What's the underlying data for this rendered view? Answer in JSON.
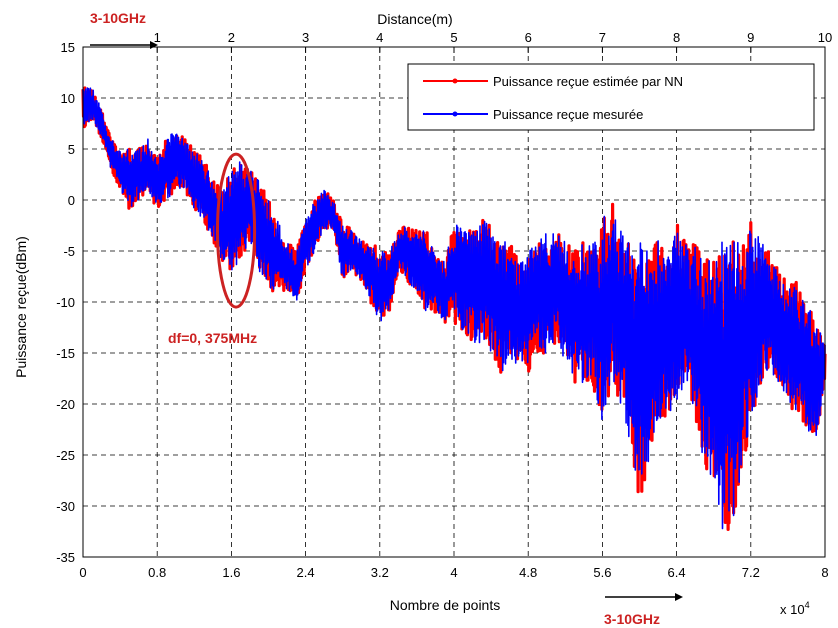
{
  "chart_data": {
    "type": "line",
    "title": "",
    "top_xlabel": "Distance(m)",
    "xlabel": "Nombre de points",
    "ylabel": "Puissance reçue(dBm)",
    "x_multiplier_label": "x 10",
    "x_multiplier_exponent": "4",
    "xlim": [
      0,
      8
    ],
    "ylim": [
      -35,
      15
    ],
    "xticks": [
      "0",
      "0.8",
      "1.6",
      "2.4",
      "3.2",
      "4",
      "4.8",
      "5.6",
      "6.4",
      "7.2",
      "8"
    ],
    "yticks": [
      "15",
      "10",
      "5",
      "0",
      "-5",
      "-10",
      "-15",
      "-20",
      "-25",
      "-30",
      "-35"
    ],
    "top_xticks": [
      "1",
      "2",
      "3",
      "4",
      "5",
      "6",
      "7",
      "8",
      "9",
      "10"
    ],
    "grid": true,
    "legend_position": "top-right",
    "series": [
      {
        "name": "Puissance reçue estimée par NN",
        "color": "#ff0000",
        "envelope_x": [
          0,
          0.1,
          0.2,
          0.3,
          0.4,
          0.5,
          0.6,
          0.7,
          0.8,
          0.9,
          1.0,
          1.1,
          1.2,
          1.3,
          1.4,
          1.5,
          1.6,
          1.7,
          1.8,
          1.9,
          2.0,
          2.1,
          2.2,
          2.3,
          2.4,
          2.5,
          2.6,
          2.7,
          2.8,
          2.9,
          3.0,
          3.1,
          3.2,
          3.3,
          3.4,
          3.5,
          3.6,
          3.7,
          3.8,
          3.9,
          4.0,
          4.1,
          4.2,
          4.3,
          4.4,
          4.5,
          4.6,
          4.7,
          4.8,
          4.9,
          5.0,
          5.1,
          5.2,
          5.3,
          5.4,
          5.5,
          5.6,
          5.7,
          5.8,
          5.9,
          6.0,
          6.1,
          6.2,
          6.3,
          6.4,
          6.5,
          6.6,
          6.7,
          6.8,
          6.9,
          7.0,
          7.1,
          7.2,
          7.3,
          7.4,
          7.5,
          7.6,
          7.7,
          7.8,
          7.9,
          8.0
        ],
        "upper": [
          11,
          11,
          9,
          6,
          5,
          5,
          5,
          6,
          4,
          6,
          7,
          6,
          5,
          4,
          2,
          1,
          3,
          4,
          3,
          2,
          0,
          -2,
          -4,
          -5,
          -2,
          0,
          1,
          0,
          -2,
          -3,
          -4,
          -4,
          -5,
          -5,
          -3,
          -2,
          -3,
          -3,
          -5,
          -6,
          -2,
          -3,
          -3,
          -2,
          -2,
          -4,
          -4,
          -6,
          -5,
          -4,
          -3,
          -3,
          -4,
          -5,
          -4,
          -4,
          -2,
          0,
          -3,
          -4,
          -4,
          -4,
          -4,
          -5,
          -2,
          -4,
          -4,
          -6,
          -5,
          -4,
          -4,
          -4,
          -2,
          -4,
          -5,
          -7,
          -8,
          -8,
          -10,
          -12,
          -14
        ],
        "lower": [
          7,
          8,
          6,
          3,
          1,
          -1,
          0,
          1,
          -1,
          0,
          1,
          1,
          -1,
          -2,
          -4,
          -6,
          -7,
          -6,
          -4,
          -7,
          -9,
          -9,
          -9,
          -10,
          -7,
          -5,
          -3,
          -3,
          -8,
          -7,
          -8,
          -10,
          -12,
          -11,
          -7,
          -8,
          -9,
          -11,
          -11,
          -12,
          -12,
          -13,
          -14,
          -14,
          -15,
          -17,
          -16,
          -16,
          -17,
          -15,
          -15,
          -14,
          -16,
          -18,
          -18,
          -18,
          -23,
          -18,
          -20,
          -24,
          -30,
          -26,
          -22,
          -21,
          -20,
          -18,
          -21,
          -26,
          -28,
          -33,
          -33,
          -27,
          -22,
          -18,
          -17,
          -18,
          -20,
          -21,
          -23,
          -24,
          -18
        ]
      },
      {
        "name": "Puissance reçue mesurée",
        "color": "#0000ff",
        "envelope_x": [
          0,
          0.1,
          0.2,
          0.3,
          0.4,
          0.5,
          0.6,
          0.7,
          0.8,
          0.9,
          1.0,
          1.1,
          1.2,
          1.3,
          1.4,
          1.5,
          1.6,
          1.7,
          1.8,
          1.9,
          2.0,
          2.1,
          2.2,
          2.3,
          2.4,
          2.5,
          2.6,
          2.7,
          2.8,
          2.9,
          3.0,
          3.1,
          3.2,
          3.3,
          3.4,
          3.5,
          3.6,
          3.7,
          3.8,
          3.9,
          4.0,
          4.1,
          4.2,
          4.3,
          4.4,
          4.5,
          4.6,
          4.7,
          4.8,
          4.9,
          5.0,
          5.1,
          5.2,
          5.3,
          5.4,
          5.5,
          5.6,
          5.7,
          5.8,
          5.9,
          6.0,
          6.1,
          6.2,
          6.3,
          6.4,
          6.5,
          6.6,
          6.7,
          6.8,
          6.9,
          7.0,
          7.1,
          7.2,
          7.3,
          7.4,
          7.5,
          7.6,
          7.7,
          7.8,
          7.9,
          8.0
        ],
        "upper": [
          11,
          11,
          9,
          6,
          5,
          5,
          5,
          6,
          4,
          6,
          7,
          6,
          5,
          4,
          2,
          1,
          3,
          4,
          3,
          2,
          0,
          -2,
          -4,
          -5,
          -2,
          0,
          1,
          0,
          -2,
          -3,
          -4,
          -4,
          -5,
          -5,
          -3,
          -2,
          -3,
          -3,
          -5,
          -6,
          -2,
          -3,
          -3,
          -2,
          -2,
          -4,
          -4,
          -6,
          -5,
          -4,
          -3,
          -3,
          -4,
          -5,
          -4,
          -4,
          -2,
          0,
          -3,
          -4,
          -4,
          -4,
          -4,
          -5,
          -2,
          -4,
          -4,
          -6,
          -5,
          -4,
          -4,
          -4,
          -2,
          -4,
          -5,
          -7,
          -8,
          -8,
          -10,
          -12,
          -14
        ],
        "lower": [
          7,
          8,
          6,
          3,
          1,
          -1,
          0,
          1,
          -1,
          0,
          1,
          1,
          -1,
          -2,
          -4,
          -6,
          -7,
          -6,
          -4,
          -7,
          -9,
          -9,
          -9,
          -10,
          -7,
          -5,
          -3,
          -3,
          -8,
          -7,
          -8,
          -10,
          -12,
          -11,
          -7,
          -8,
          -9,
          -11,
          -11,
          -12,
          -12,
          -13,
          -14,
          -14,
          -15,
          -17,
          -16,
          -16,
          -17,
          -15,
          -15,
          -14,
          -16,
          -18,
          -18,
          -18,
          -23,
          -18,
          -20,
          -24,
          -30,
          -26,
          -22,
          -21,
          -20,
          -18,
          -21,
          -26,
          -28,
          -33,
          -33,
          -27,
          -22,
          -18,
          -17,
          -18,
          -20,
          -21,
          -23,
          -24,
          -18
        ]
      }
    ],
    "annotations": [
      {
        "text": "3-10GHz",
        "color": "#cc2222"
      },
      {
        "text": "3-10GHz",
        "color": "#cc2222"
      },
      {
        "text": "df=0, 375MHz",
        "color": "#cc2222"
      }
    ],
    "highlight_ellipse": {
      "x": 1.65,
      "y": -3,
      "rx": 0.2,
      "ry": 7.5,
      "color": "#cc2222"
    }
  }
}
